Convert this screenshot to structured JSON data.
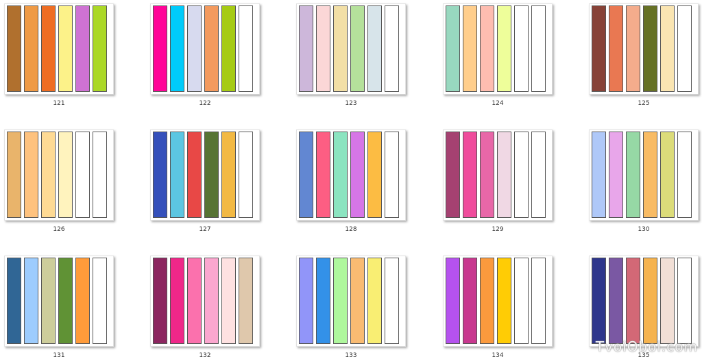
{
  "palettes": [
    {
      "label": "121",
      "colors": [
        "#B0702E",
        "#EF9A45",
        "#EE6D23",
        "#FCF289",
        "#CE72D3",
        "#ABD827"
      ]
    },
    {
      "label": "122",
      "colors": [
        "#FF0598",
        "#00CBFB",
        "#D7DAEF",
        "#F39A5E",
        "#A6CB14",
        "#FFFFFF"
      ]
    },
    {
      "label": "123",
      "colors": [
        "#CDB7DA",
        "#FBD7D7",
        "#F2DFA6",
        "#B5E19B",
        "#D7E4EA",
        "#FFFFFF"
      ]
    },
    {
      "label": "124",
      "colors": [
        "#98D8BF",
        "#FFCE8C",
        "#FEBDB0",
        "#EEFE9A",
        "#FFFFFF",
        "#FFFFFF"
      ]
    },
    {
      "label": "125",
      "colors": [
        "#874237",
        "#E97852",
        "#F4AC8C",
        "#667125",
        "#FAE5B2",
        "#FFFFFF"
      ]
    },
    {
      "label": "126",
      "colors": [
        "#E9B46B",
        "#FEC27E",
        "#FEDA94",
        "#FFF3BE",
        "#FFFFFF",
        "#FFFFFF"
      ]
    },
    {
      "label": "127",
      "colors": [
        "#3550BB",
        "#5CC6E2",
        "#E84846",
        "#577434",
        "#F2B944",
        "#FFFFFF"
      ]
    },
    {
      "label": "128",
      "colors": [
        "#6287D2",
        "#FD5E83",
        "#8BE4C0",
        "#D676E6",
        "#FCBC43",
        "#FFFFFF"
      ]
    },
    {
      "label": "129",
      "colors": [
        "#A54171",
        "#EF4C9C",
        "#E867A8",
        "#F0D8E4",
        "#FFFFFF",
        "#FFFFFF"
      ]
    },
    {
      "label": "130",
      "colors": [
        "#AFC8F8",
        "#E8A6EA",
        "#96D8A5",
        "#F8BB64",
        "#DCDC7A",
        "#FFFFFF"
      ]
    },
    {
      "label": "131",
      "colors": [
        "#306695",
        "#9DCCFD",
        "#CDCD9B",
        "#609235",
        "#FF9B3A",
        "#FFFFFF"
      ]
    },
    {
      "label": "132",
      "colors": [
        "#8C2660",
        "#EF2789",
        "#FB71AD",
        "#FBA7CF",
        "#FEE1E1",
        "#DFC8AC"
      ]
    },
    {
      "label": "133",
      "colors": [
        "#9195F9",
        "#3391E8",
        "#AFF79D",
        "#F9BB72",
        "#F9EE73",
        "#FFFFFF"
      ]
    },
    {
      "label": "134",
      "colors": [
        "#B552EE",
        "#C8388F",
        "#FB9A3D",
        "#FFCC05",
        "#FFFFFF",
        "#FFFFFF"
      ]
    },
    {
      "label": "135",
      "colors": [
        "#2E368C",
        "#7A58A3",
        "#D36876",
        "#F5B34F",
        "#F1DFD6",
        "#FFFFFF"
      ]
    }
  ],
  "watermark": "TvoiOboi.com"
}
